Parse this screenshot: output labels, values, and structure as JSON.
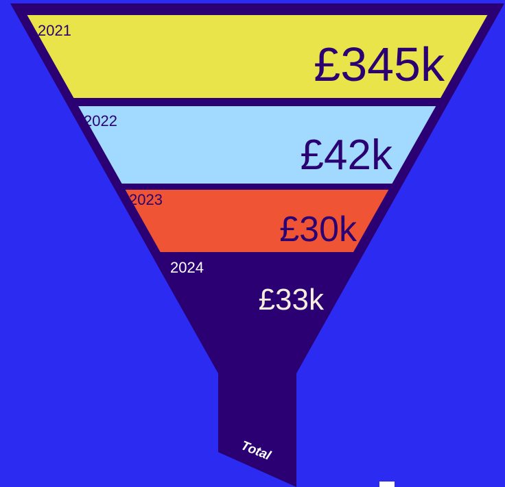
{
  "chart_data": {
    "type": "funnel",
    "categories": [
      "2021",
      "2022",
      "2023",
      "2024"
    ],
    "values": [
      345,
      42,
      30,
      33
    ],
    "value_labels": [
      "£345k",
      "£42k",
      "£30k",
      "£33k"
    ],
    "colors": [
      "#e8e44a",
      "#a2daff",
      "#ef5535",
      "#2a0072"
    ],
    "annotation": "Total"
  }
}
